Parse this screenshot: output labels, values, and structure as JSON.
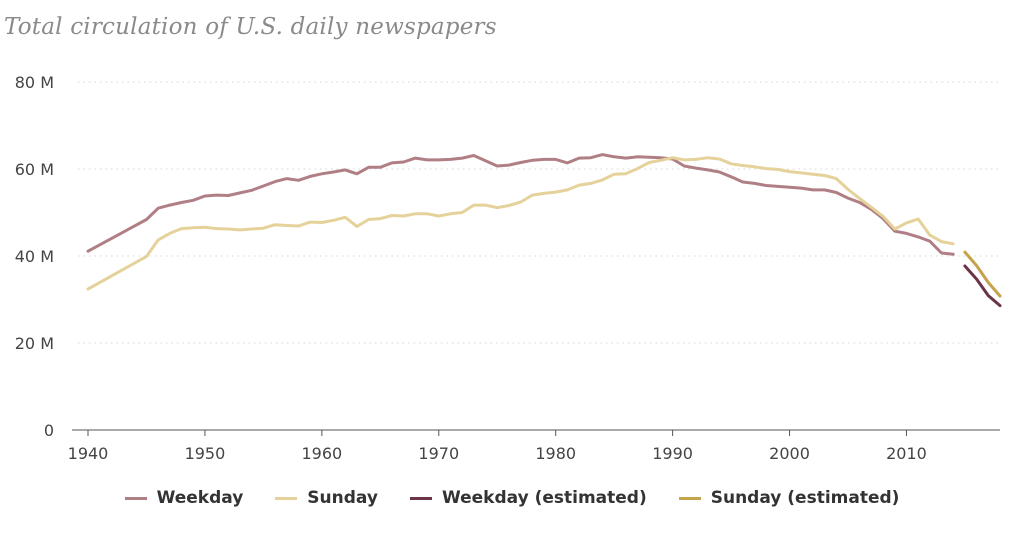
{
  "chart_data": {
    "type": "line",
    "title": "Total circulation of U.S. daily newspapers",
    "xlabel": "",
    "ylabel": "",
    "xlim": [
      1940,
      2018
    ],
    "ylim": [
      0,
      80
    ],
    "x_ticks": [
      1940,
      1950,
      1960,
      1970,
      1980,
      1990,
      2000,
      2010
    ],
    "y_ticks": [
      0,
      20,
      40,
      60,
      80
    ],
    "y_tick_labels": [
      "0",
      "20 M",
      "40 M",
      "60 M",
      "80 M"
    ],
    "grid": "horizontal dotted",
    "legend_position": "bottom",
    "series": [
      {
        "name": "Weekday",
        "color": "#b07f86",
        "points": [
          [
            1940,
            41.1
          ],
          [
            1945,
            48.4
          ],
          [
            1946,
            51.0
          ],
          [
            1947,
            51.7
          ],
          [
            1948,
            52.3
          ],
          [
            1949,
            52.8
          ],
          [
            1950,
            53.8
          ],
          [
            1951,
            54.0
          ],
          [
            1952,
            53.9
          ],
          [
            1953,
            54.5
          ],
          [
            1954,
            55.1
          ],
          [
            1955,
            56.1
          ],
          [
            1956,
            57.1
          ],
          [
            1957,
            57.8
          ],
          [
            1958,
            57.4
          ],
          [
            1959,
            58.3
          ],
          [
            1960,
            58.9
          ],
          [
            1961,
            59.3
          ],
          [
            1962,
            59.8
          ],
          [
            1963,
            58.9
          ],
          [
            1964,
            60.4
          ],
          [
            1965,
            60.4
          ],
          [
            1966,
            61.4
          ],
          [
            1967,
            61.6
          ],
          [
            1968,
            62.5
          ],
          [
            1969,
            62.1
          ],
          [
            1970,
            62.1
          ],
          [
            1971,
            62.2
          ],
          [
            1972,
            62.5
          ],
          [
            1973,
            63.1
          ],
          [
            1974,
            61.9
          ],
          [
            1975,
            60.7
          ],
          [
            1976,
            60.9
          ],
          [
            1977,
            61.5
          ],
          [
            1978,
            62.0
          ],
          [
            1979,
            62.2
          ],
          [
            1980,
            62.2
          ],
          [
            1981,
            61.4
          ],
          [
            1982,
            62.5
          ],
          [
            1983,
            62.6
          ],
          [
            1984,
            63.3
          ],
          [
            1985,
            62.8
          ],
          [
            1986,
            62.5
          ],
          [
            1987,
            62.8
          ],
          [
            1988,
            62.7
          ],
          [
            1989,
            62.6
          ],
          [
            1990,
            62.3
          ],
          [
            1991,
            60.7
          ],
          [
            1992,
            60.2
          ],
          [
            1993,
            59.8
          ],
          [
            1994,
            59.3
          ],
          [
            1995,
            58.2
          ],
          [
            1996,
            57.0
          ],
          [
            1997,
            56.7
          ],
          [
            1998,
            56.2
          ],
          [
            1999,
            56.0
          ],
          [
            2000,
            55.8
          ],
          [
            2001,
            55.6
          ],
          [
            2002,
            55.2
          ],
          [
            2003,
            55.2
          ],
          [
            2004,
            54.6
          ],
          [
            2005,
            53.3
          ],
          [
            2006,
            52.3
          ],
          [
            2007,
            50.7
          ],
          [
            2008,
            48.6
          ],
          [
            2009,
            45.7
          ],
          [
            2010,
            45.2
          ],
          [
            2011,
            44.4
          ],
          [
            2012,
            43.4
          ],
          [
            2013,
            40.7
          ],
          [
            2014,
            40.4
          ]
        ]
      },
      {
        "name": "Sunday",
        "color": "#e5d29a",
        "points": [
          [
            1940,
            32.4
          ],
          [
            1945,
            39.9
          ],
          [
            1946,
            43.7
          ],
          [
            1947,
            45.2
          ],
          [
            1948,
            46.3
          ],
          [
            1949,
            46.5
          ],
          [
            1950,
            46.6
          ],
          [
            1951,
            46.3
          ],
          [
            1952,
            46.2
          ],
          [
            1953,
            46.0
          ],
          [
            1954,
            46.2
          ],
          [
            1955,
            46.4
          ],
          [
            1956,
            47.2
          ],
          [
            1957,
            47.0
          ],
          [
            1958,
            46.9
          ],
          [
            1959,
            47.8
          ],
          [
            1960,
            47.7
          ],
          [
            1961,
            48.2
          ],
          [
            1962,
            48.9
          ],
          [
            1963,
            46.8
          ],
          [
            1964,
            48.4
          ],
          [
            1965,
            48.6
          ],
          [
            1966,
            49.3
          ],
          [
            1967,
            49.2
          ],
          [
            1968,
            49.7
          ],
          [
            1969,
            49.7
          ],
          [
            1970,
            49.2
          ],
          [
            1971,
            49.7
          ],
          [
            1972,
            50.0
          ],
          [
            1973,
            51.7
          ],
          [
            1974,
            51.7
          ],
          [
            1975,
            51.1
          ],
          [
            1976,
            51.6
          ],
          [
            1977,
            52.4
          ],
          [
            1978,
            54.0
          ],
          [
            1979,
            54.4
          ],
          [
            1980,
            54.7
          ],
          [
            1981,
            55.2
          ],
          [
            1982,
            56.3
          ],
          [
            1983,
            56.7
          ],
          [
            1984,
            57.5
          ],
          [
            1985,
            58.8
          ],
          [
            1986,
            58.9
          ],
          [
            1987,
            60.1
          ],
          [
            1988,
            61.5
          ],
          [
            1989,
            62.0
          ],
          [
            1990,
            62.6
          ],
          [
            1991,
            62.1
          ],
          [
            1992,
            62.2
          ],
          [
            1993,
            62.6
          ],
          [
            1994,
            62.3
          ],
          [
            1995,
            61.2
          ],
          [
            1996,
            60.8
          ],
          [
            1997,
            60.5
          ],
          [
            1998,
            60.1
          ],
          [
            1999,
            59.9
          ],
          [
            2000,
            59.4
          ],
          [
            2001,
            59.1
          ],
          [
            2002,
            58.8
          ],
          [
            2003,
            58.5
          ],
          [
            2004,
            57.8
          ],
          [
            2005,
            55.3
          ],
          [
            2006,
            53.2
          ],
          [
            2007,
            51.2
          ],
          [
            2008,
            49.1
          ],
          [
            2009,
            46.2
          ],
          [
            2010,
            47.6
          ],
          [
            2011,
            48.5
          ],
          [
            2012,
            44.8
          ],
          [
            2013,
            43.3
          ],
          [
            2014,
            42.8
          ]
        ]
      },
      {
        "name": "Weekday (estimated)",
        "color": "#6b3547",
        "points": [
          [
            2015,
            37.7
          ],
          [
            2016,
            34.7
          ],
          [
            2017,
            30.9
          ],
          [
            2018,
            28.6
          ]
        ]
      },
      {
        "name": "Sunday (estimated)",
        "color": "#c6a24a",
        "points": [
          [
            2015,
            40.9
          ],
          [
            2016,
            37.8
          ],
          [
            2017,
            33.9
          ],
          [
            2018,
            30.8
          ]
        ]
      }
    ]
  }
}
